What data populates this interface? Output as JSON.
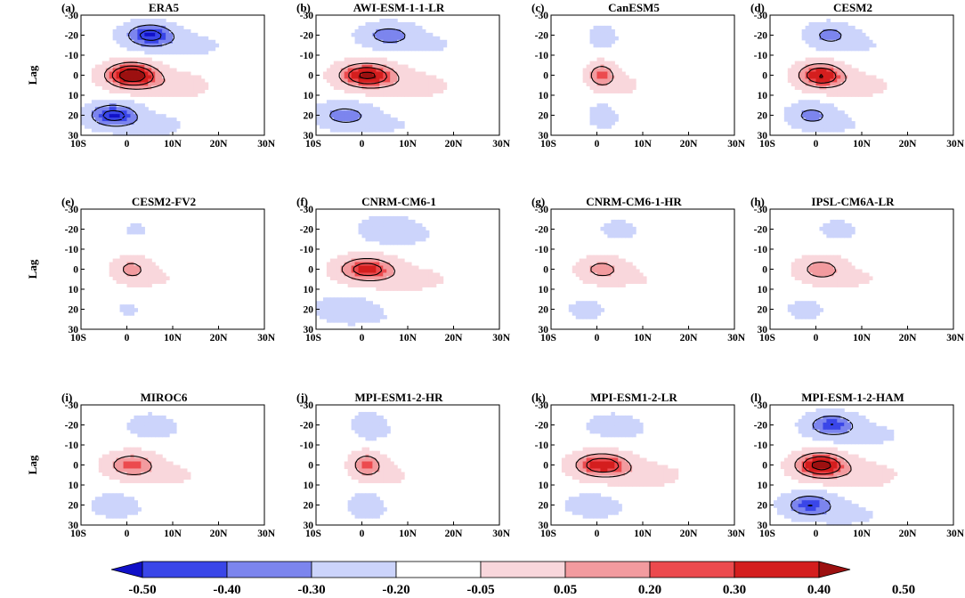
{
  "chart_data": {
    "type": "contour_heatmap_grid",
    "ylabel": "Lag",
    "x_ticks": [
      "10S",
      "0",
      "10N",
      "20N",
      "30N"
    ],
    "xlim": [
      -10,
      30
    ],
    "y_ticks": [
      "-30",
      "-20",
      "-10",
      "0",
      "10",
      "20",
      "30"
    ],
    "ylim": [
      -30,
      30
    ],
    "colorbar": {
      "levels": [
        -0.5,
        -0.4,
        -0.3,
        -0.2,
        -0.05,
        0.05,
        0.2,
        0.3,
        0.4,
        0.5
      ],
      "labels": [
        "-0.50",
        "-0.40",
        "-0.30",
        "-0.20",
        "-0.05",
        "0.05",
        "0.20",
        "0.30",
        "0.40",
        "0.50"
      ],
      "colors": [
        "#1010c8",
        "#3a46e8",
        "#7c85ee",
        "#ccd4fb",
        "#ffffff",
        "#f9d7dc",
        "#f29b9f",
        "#ec4a4e",
        "#d41e1e",
        "#9c1010"
      ]
    },
    "panels": [
      {
        "label": "(a)",
        "title": "ERA5",
        "pos": 1.0,
        "neg": 1.0,
        "tilt": 2.0,
        "spread": 1.0
      },
      {
        "label": "(b)",
        "title": "AWI-ESM-1-1-LR",
        "pos": 0.85,
        "neg": 0.65,
        "tilt": 2.4,
        "spread": 1.1
      },
      {
        "label": "(c)",
        "title": "CanESM5",
        "pos": 0.55,
        "neg": 0.3,
        "tilt": 0.0,
        "spread": 0.55
      },
      {
        "label": "(d)",
        "title": "CESM2",
        "pos": 0.8,
        "neg": 0.6,
        "tilt": 1.0,
        "spread": 0.9
      },
      {
        "label": "(e)",
        "title": "CESM2-FV2",
        "pos": 0.4,
        "neg": 0.15,
        "tilt": 0.4,
        "spread": 0.7
      },
      {
        "label": "(f)",
        "title": "CNRM-CM6-1",
        "pos": 0.7,
        "neg": 0.45,
        "tilt": 2.4,
        "spread": 1.1
      },
      {
        "label": "(g)",
        "title": "CNRM-CM6-1-HR",
        "pos": 0.4,
        "neg": 0.2,
        "tilt": 1.8,
        "spread": 0.9
      },
      {
        "label": "(h)",
        "title": "IPSL-CM6A-LR",
        "pos": 0.45,
        "neg": 0.2,
        "tilt": 1.8,
        "spread": 0.9
      },
      {
        "label": "(i)",
        "title": "MIROC6",
        "pos": 0.55,
        "neg": 0.3,
        "tilt": 2.0,
        "spread": 0.95
      },
      {
        "label": "(j)",
        "title": "MPI-ESM1-2-HR",
        "pos": 0.55,
        "neg": 0.4,
        "tilt": 0.2,
        "spread": 0.6
      },
      {
        "label": "(k)",
        "title": "MPI-ESM1-2-LR",
        "pos": 0.75,
        "neg": 0.3,
        "tilt": 1.2,
        "spread": 1.1
      },
      {
        "label": "(l)",
        "title": "MPI-ESM-1-2-HAM",
        "pos": 0.9,
        "neg": 0.85,
        "tilt": 1.2,
        "spread": 1.0
      }
    ]
  }
}
